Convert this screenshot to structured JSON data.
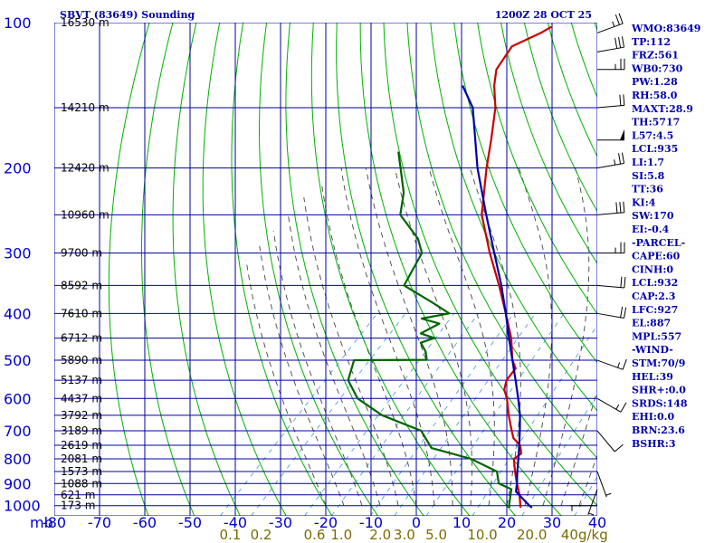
{
  "header": {
    "title": "SBVT (83649) Sounding",
    "time": "1200Z 28 OCT 25"
  },
  "chart_data": {
    "type": "skew-t log-p sounding",
    "title": "SBVT (83649) Sounding",
    "valid": "1200Z 28 OCT 25",
    "pressure_axis_label": "mb",
    "pressure_levels": [
      100,
      200,
      300,
      400,
      500,
      600,
      700,
      800,
      900,
      1000
    ],
    "pressure_range": [
      100,
      1050
    ],
    "temperature_ticks": [
      -80,
      -70,
      -60,
      -50,
      -40,
      -30,
      -20,
      -10,
      0,
      10,
      20,
      30,
      40
    ],
    "temperature_units": "C",
    "mixing_ratio_labels": [
      "0.1",
      "0.2",
      "0.6",
      "1.0",
      "2.0",
      "3.0",
      "5.0",
      "10.0",
      "20.0",
      "40"
    ],
    "mixing_ratio_unit": "g/kg",
    "heights": [
      {
        "p": 100,
        "label": "16530 m"
      },
      {
        "p": 150,
        "label": "14210 m"
      },
      {
        "p": 200,
        "label": "12420 m"
      },
      {
        "p": 250,
        "label": "10960 m"
      },
      {
        "p": 300,
        "label": "9700 m"
      },
      {
        "p": 350,
        "label": "8592 m"
      },
      {
        "p": 400,
        "label": "7610 m"
      },
      {
        "p": 450,
        "label": "6712 m"
      },
      {
        "p": 500,
        "label": "5890 m"
      },
      {
        "p": 550,
        "label": "5137 m"
      },
      {
        "p": 600,
        "label": "4437 m"
      },
      {
        "p": 650,
        "label": "3792 m"
      },
      {
        "p": 700,
        "label": "3189 m"
      },
      {
        "p": 750,
        "label": "2619 m"
      },
      {
        "p": 800,
        "label": "2081 m"
      },
      {
        "p": 850,
        "label": "1573 m"
      },
      {
        "p": 900,
        "label": "1088 m"
      },
      {
        "p": 950,
        "label": "621 m"
      },
      {
        "p": 1000,
        "label": "173 m"
      }
    ],
    "series": [
      {
        "name": "Temperature",
        "color": "#cc0000",
        "points": [
          {
            "p": 1010,
            "t": 23.5
          },
          {
            "p": 1000,
            "t": 23.0
          },
          {
            "p": 950,
            "t": 20.5
          },
          {
            "p": 925,
            "t": 19.0
          },
          {
            "p": 900,
            "t": 17.5
          },
          {
            "p": 875,
            "t": 16.0
          },
          {
            "p": 850,
            "t": 14.5
          },
          {
            "p": 800,
            "t": 11.5
          },
          {
            "p": 780,
            "t": 12.0
          },
          {
            "p": 750,
            "t": 10.0
          },
          {
            "p": 725,
            "t": 7.0
          },
          {
            "p": 700,
            "t": 5.0
          },
          {
            "p": 650,
            "t": 1.0
          },
          {
            "p": 600,
            "t": -3.0
          },
          {
            "p": 575,
            "t": -5.5
          },
          {
            "p": 550,
            "t": -7.0
          },
          {
            "p": 520,
            "t": -7.5
          },
          {
            "p": 500,
            "t": -10.0
          },
          {
            "p": 450,
            "t": -15.0
          },
          {
            "p": 400,
            "t": -21.5
          },
          {
            "p": 350,
            "t": -29.0
          },
          {
            "p": 300,
            "t": -38.0
          },
          {
            "p": 250,
            "t": -48.0
          },
          {
            "p": 200,
            "t": -57.0
          },
          {
            "p": 175,
            "t": -62.0
          },
          {
            "p": 150,
            "t": -68.0
          },
          {
            "p": 135,
            "t": -73.0
          },
          {
            "p": 125,
            "t": -76.0
          },
          {
            "p": 112,
            "t": -77.5
          },
          {
            "p": 105,
            "t": -74.0
          },
          {
            "p": 102,
            "t": -73.0
          }
        ]
      },
      {
        "name": "Dewpoint",
        "color": "#006400",
        "points": [
          {
            "p": 1010,
            "t": 21.0
          },
          {
            "p": 1000,
            "t": 20.5
          },
          {
            "p": 950,
            "t": 18.5
          },
          {
            "p": 925,
            "t": 17.5
          },
          {
            "p": 900,
            "t": 13.5
          },
          {
            "p": 875,
            "t": 12.0
          },
          {
            "p": 850,
            "t": 10.5
          },
          {
            "p": 800,
            "t": 2.0
          },
          {
            "p": 760,
            "t": -9.0
          },
          {
            "p": 700,
            "t": -15.0
          },
          {
            "p": 650,
            "t": -27.0
          },
          {
            "p": 600,
            "t": -36.0
          },
          {
            "p": 550,
            "t": -42.0
          },
          {
            "p": 500,
            "t": -45.0
          },
          {
            "p": 499,
            "t": -29.0
          },
          {
            "p": 480,
            "t": -31.0
          },
          {
            "p": 460,
            "t": -34.0
          },
          {
            "p": 450,
            "t": -32.0
          },
          {
            "p": 440,
            "t": -36.0
          },
          {
            "p": 420,
            "t": -34.0
          },
          {
            "p": 410,
            "t": -39.0
          },
          {
            "p": 400,
            "t": -34.0
          },
          {
            "p": 380,
            "t": -40.0
          },
          {
            "p": 350,
            "t": -50.0
          },
          {
            "p": 300,
            "t": -53.0
          },
          {
            "p": 280,
            "t": -57.0
          },
          {
            "p": 250,
            "t": -66.0
          },
          {
            "p": 225,
            "t": -70.0
          },
          {
            "p": 200,
            "t": -76.0
          },
          {
            "p": 185,
            "t": -80.0
          }
        ]
      },
      {
        "name": "Parcel",
        "color": "#0000aa",
        "points": [
          {
            "p": 1010,
            "t": 26.0
          },
          {
            "p": 1000,
            "t": 25.0
          },
          {
            "p": 935,
            "t": 19.0
          },
          {
            "p": 900,
            "t": 17.5
          },
          {
            "p": 850,
            "t": 15.0
          },
          {
            "p": 800,
            "t": 12.5
          },
          {
            "p": 750,
            "t": 9.8
          },
          {
            "p": 700,
            "t": 6.8
          },
          {
            "p": 650,
            "t": 3.5
          },
          {
            "p": 600,
            "t": -0.5
          },
          {
            "p": 550,
            "t": -5.0
          },
          {
            "p": 500,
            "t": -10.0
          },
          {
            "p": 450,
            "t": -15.5
          },
          {
            "p": 400,
            "t": -21.5
          },
          {
            "p": 350,
            "t": -28.5
          },
          {
            "p": 300,
            "t": -37.0
          },
          {
            "p": 250,
            "t": -47.0
          },
          {
            "p": 200,
            "t": -59.0
          },
          {
            "p": 150,
            "t": -73.0
          },
          {
            "p": 135,
            "t": -80.0
          }
        ]
      }
    ],
    "wind_barbs": [
      {
        "p": 105,
        "dir": 250,
        "spd": 25
      },
      {
        "p": 115,
        "dir": 260,
        "spd": 30
      },
      {
        "p": 125,
        "dir": 270,
        "spd": 25
      },
      {
        "p": 150,
        "dir": 265,
        "spd": 20
      },
      {
        "p": 175,
        "dir": 270,
        "spd": 50
      },
      {
        "p": 200,
        "dir": 260,
        "spd": 25
      },
      {
        "p": 250,
        "dir": 265,
        "spd": 30
      },
      {
        "p": 300,
        "dir": 270,
        "spd": 25
      },
      {
        "p": 350,
        "dir": 275,
        "spd": 20
      },
      {
        "p": 400,
        "dir": 280,
        "spd": 20
      },
      {
        "p": 500,
        "dir": 290,
        "spd": 15
      },
      {
        "p": 600,
        "dir": 300,
        "spd": 15
      },
      {
        "p": 700,
        "dir": 320,
        "spd": 10
      },
      {
        "p": 850,
        "dir": 340,
        "spd": 5
      },
      {
        "p": 925,
        "dir": 20,
        "spd": 5
      },
      {
        "p": 1000,
        "dir": 90,
        "spd": 5
      }
    ]
  },
  "indices": [
    "WMO:83649",
    "TP:112",
    "FRZ:561",
    "WB0:730",
    "PW:1.28",
    "RH:58.0",
    "MAXT:28.9",
    "TH:5717",
    "L57:4.5",
    "LCL:935",
    "LI:1.7",
    "SI:5.8",
    "TT:36",
    "KI:4",
    "SW:170",
    "EI:-0.4",
    "-PARCEL-",
    "CAPE:60",
    "CINH:0",
    "LCL:932",
    "CAP:2.3",
    "LFC:927",
    "EL:887",
    "MPL:557",
    "-WIND-",
    "STM:70/9",
    "HEL:39",
    "SHR+:0.0",
    "SRDS:148",
    "EHI:0.0",
    "BRN:23.6",
    "BSHR:3"
  ],
  "colors": {
    "isobar": "#0000a0",
    "isotherm": "#0000a0",
    "dry_adiabat": "#00b000",
    "moist_adiabat": "#444444",
    "mixing_ratio": "#4fa3d9"
  }
}
